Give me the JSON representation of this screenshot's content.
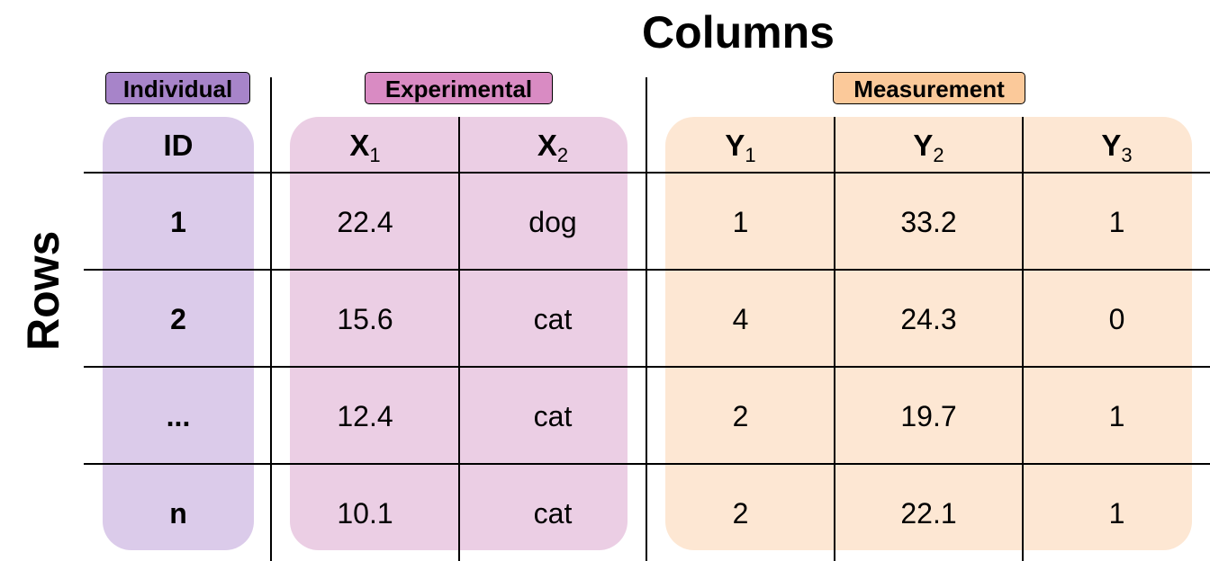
{
  "titles": {
    "columns": "Columns",
    "rows": "Rows"
  },
  "groups": {
    "individual": "Individual",
    "experimental": "Experimental",
    "measurement": "Measurement"
  },
  "colors": {
    "individual_label": "#a784c9",
    "individual_panel": "#dbcbea",
    "experimental_label": "#d98bc3",
    "experimental_panel": "#ebcee4",
    "measurement_label": "#fbc99a",
    "measurement_panel": "#fde7d3"
  },
  "headers": [
    {
      "base": "ID",
      "sub": ""
    },
    {
      "base": "X",
      "sub": "1"
    },
    {
      "base": "X",
      "sub": "2"
    },
    {
      "base": "Y",
      "sub": "1"
    },
    {
      "base": "Y",
      "sub": "2"
    },
    {
      "base": "Y",
      "sub": "3"
    }
  ],
  "rows": [
    [
      "1",
      "22.4",
      "dog",
      "1",
      "33.2",
      "1"
    ],
    [
      "2",
      "15.6",
      "cat",
      "4",
      "24.3",
      "0"
    ],
    [
      "...",
      "12.4",
      "cat",
      "2",
      "19.7",
      "1"
    ],
    [
      "n",
      "10.1",
      "cat",
      "2",
      "22.1",
      "1"
    ]
  ]
}
